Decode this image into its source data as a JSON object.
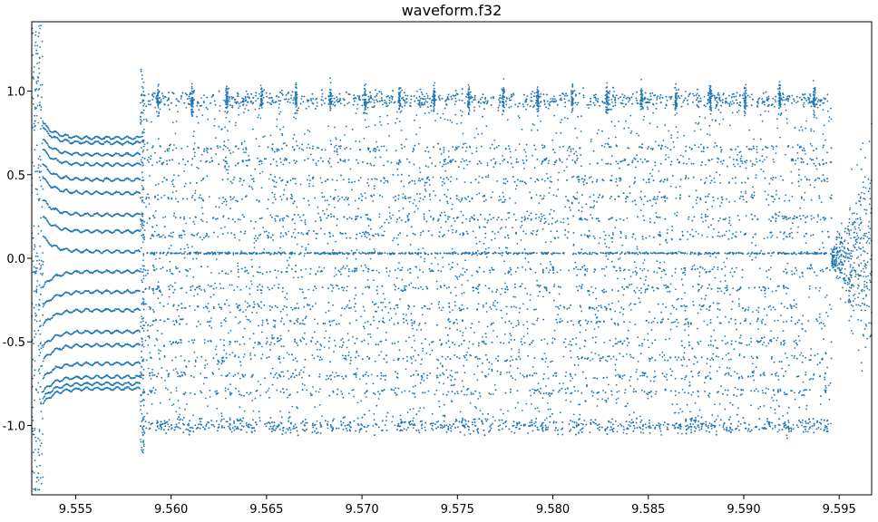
{
  "chart_data": {
    "type": "scatter",
    "title": "waveform.f32",
    "xlabel": "",
    "ylabel": "",
    "xlim": [
      9.5527,
      9.5967
    ],
    "ylim": [
      -1.415,
      1.415
    ],
    "x_ticks": [
      9.555,
      9.56,
      9.565,
      9.57,
      9.575,
      9.58,
      9.585,
      9.59,
      9.595
    ],
    "x_tick_labels": [
      "9.555",
      "9.560",
      "9.565",
      "9.570",
      "9.575",
      "9.580",
      "9.585",
      "9.590",
      "9.595"
    ],
    "y_ticks": [
      1.0,
      0.5,
      0.0,
      -0.5,
      -1.0
    ],
    "y_tick_labels": [
      "1.0",
      "0.5",
      "0.0",
      "-0.5",
      "-1.0"
    ],
    "grid": false,
    "marker_color": "#1f77b4",
    "series": [
      {
        "segments": [
          {
            "x_range": [
              9.5527,
              9.5533
            ],
            "pattern": "noise",
            "y_range": [
              -1.4,
              1.4
            ]
          },
          {
            "x_range": [
              9.5533,
              9.5584
            ],
            "pattern": "settling-levels",
            "levels": [
              0.72,
              0.69,
              0.62,
              0.56,
              0.47,
              0.39,
              0.26,
              0.16,
              0.04,
              -0.08,
              -0.2,
              -0.31,
              -0.44,
              -0.52,
              -0.63,
              -0.71,
              -0.75,
              -0.78
            ]
          },
          {
            "x_range": [
              9.5584,
              9.5946
            ],
            "pattern": "dense-bands",
            "levels": [
              0.95,
              0.66,
              0.58,
              0.47,
              0.36,
              0.24,
              0.14,
              0.03,
              -0.07,
              -0.18,
              -0.29,
              -0.38,
              -0.5,
              -0.6,
              -0.7,
              -0.8,
              -1.0
            ]
          },
          {
            "x_range": [
              9.5946,
              9.5967
            ],
            "pattern": "burst",
            "y_range": [
              -1.4,
              1.4
            ]
          }
        ]
      }
    ]
  }
}
